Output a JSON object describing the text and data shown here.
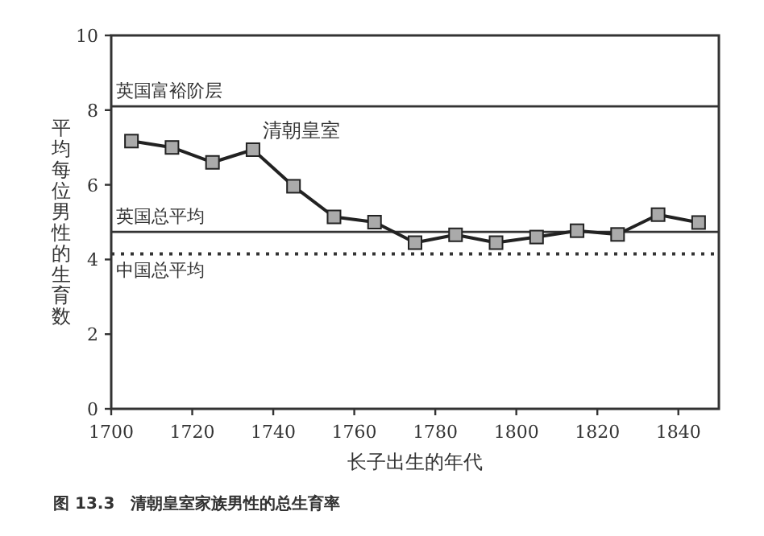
{
  "chart_data": {
    "type": "line",
    "xlabel": "长子出生的年代",
    "ylabel": "平均每位男性的生育数",
    "annotations": [
      {
        "text": "清朝皇室",
        "x": 1735,
        "y": 6.94
      },
      "图 13.3　清朝皇室家族男性的总生育率"
    ],
    "x": [
      1705,
      1715,
      1725,
      1735,
      1745,
      1755,
      1765,
      1775,
      1785,
      1795,
      1805,
      1815,
      1825,
      1835,
      1845
    ],
    "series": [
      {
        "color": "#222222",
        "values": [
          7.17,
          7.0,
          6.6,
          6.94,
          5.96,
          5.14,
          5.0,
          4.45,
          4.66,
          4.45,
          4.6,
          4.77,
          4.67,
          5.2,
          4.99
        ]
      }
    ],
    "marker": "square",
    "xlim": [
      1700,
      1850
    ],
    "xticks": [
      1700,
      1720,
      1740,
      1760,
      1780,
      1800,
      1820,
      1840
    ],
    "ylim": [
      0,
      10
    ],
    "yticks": [
      0,
      2,
      4,
      6,
      8,
      10
    ],
    "ref_lines": [
      {
        "axis": "y",
        "value": 8.1,
        "label": "英国富裕阶层",
        "color": "#333333",
        "line_style": "solid"
      },
      {
        "axis": "y",
        "value": 4.74,
        "label": "英国总平均",
        "color": "#333333",
        "line_style": "solid"
      },
      {
        "axis": "y",
        "value": 4.15,
        "label": "中国总平均",
        "color": "#333333",
        "line_style": "dotted"
      }
    ],
    "grid": false
  }
}
